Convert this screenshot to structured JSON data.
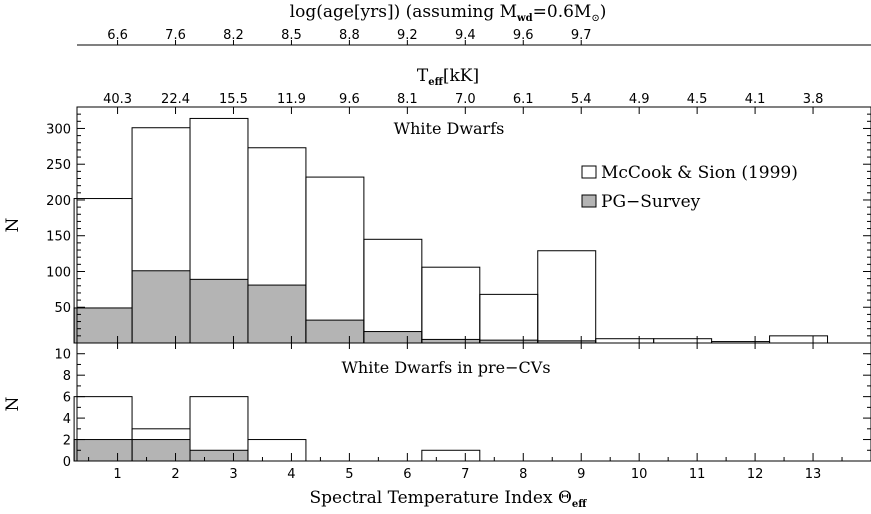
{
  "chart_data": [
    {
      "type": "bar",
      "panel": "upper",
      "title": "White Dwarfs",
      "ylabel": "N",
      "ylim": [
        0,
        330
      ],
      "yticks": [
        50,
        100,
        150,
        200,
        250,
        300
      ],
      "xlim": [
        0.3,
        14.0
      ],
      "bin_edges": [
        0.25,
        1.25,
        2.25,
        3.25,
        4.25,
        5.25,
        6.25,
        7.25,
        8.25,
        9.25,
        10.25,
        11.25,
        12.25,
        13.25
      ],
      "series": [
        {
          "name": "McCook & Sion (1999)",
          "style": "open",
          "values": [
            202,
            301,
            314,
            273,
            232,
            145,
            106,
            68,
            129,
            6,
            6,
            2,
            10
          ]
        },
        {
          "name": "PG−Survey",
          "style": "filled",
          "values": [
            49,
            101,
            89,
            81,
            32,
            16,
            5,
            4,
            3,
            0,
            0,
            0,
            0
          ]
        }
      ]
    },
    {
      "type": "bar",
      "panel": "lower",
      "title": "White Dwarfs in pre−CVs",
      "xlabel_main": "Spectral Temperature Index Θ",
      "xlabel_sub": "eff",
      "ylabel": "N",
      "ylim": [
        0,
        11
      ],
      "yticks": [
        0,
        2,
        4,
        6,
        8,
        10
      ],
      "xlim": [
        0.3,
        14.0
      ],
      "xticks": [
        1,
        2,
        3,
        4,
        5,
        6,
        7,
        8,
        9,
        10,
        11,
        12,
        13
      ],
      "bin_edges": [
        0.25,
        1.25,
        2.25,
        3.25,
        4.25,
        5.25,
        6.25,
        7.25,
        8.25,
        9.25,
        10.25,
        11.25,
        12.25,
        13.25
      ],
      "series": [
        {
          "name": "McCook & Sion (1999)",
          "style": "open",
          "values": [
            6,
            3,
            6,
            2,
            0,
            0,
            1,
            0,
            0,
            0,
            0,
            0,
            0
          ]
        },
        {
          "name": "PG−Survey",
          "style": "filled",
          "values": [
            2,
            2,
            1,
            0,
            0,
            0,
            0,
            0,
            0,
            0,
            0,
            0,
            0
          ]
        }
      ]
    }
  ],
  "teff_axis": {
    "label_main": "T",
    "label_sub": "eff",
    "label_tail": "[kK]",
    "ticks": [
      {
        "theta": 1,
        "label": "40.3"
      },
      {
        "theta": 2,
        "label": "22.4"
      },
      {
        "theta": 3,
        "label": "15.5"
      },
      {
        "theta": 4,
        "label": "11.9"
      },
      {
        "theta": 5,
        "label": "9.6"
      },
      {
        "theta": 6,
        "label": "8.1"
      },
      {
        "theta": 7,
        "label": "7.0"
      },
      {
        "theta": 8,
        "label": "6.1"
      },
      {
        "theta": 9,
        "label": "5.4"
      },
      {
        "theta": 10,
        "label": "4.9"
      },
      {
        "theta": 11,
        "label": "4.5"
      },
      {
        "theta": 12,
        "label": "4.1"
      },
      {
        "theta": 13,
        "label": "3.8"
      }
    ]
  },
  "age_axis": {
    "label_pre": "log(age[yrs]) (assuming M",
    "label_sub1": "wd",
    "label_mid": "=0.6M",
    "label_sub2": "⊙",
    "label_post": ")",
    "ticks": [
      {
        "theta": 1,
        "label": "6.6"
      },
      {
        "theta": 2,
        "label": "7.6"
      },
      {
        "theta": 3,
        "label": "8.2"
      },
      {
        "theta": 4,
        "label": "8.5"
      },
      {
        "theta": 5,
        "label": "8.8"
      },
      {
        "theta": 6,
        "label": "9.2"
      },
      {
        "theta": 7,
        "label": "9.4"
      },
      {
        "theta": 8,
        "label": "9.6"
      },
      {
        "theta": 9,
        "label": "9.7"
      }
    ]
  },
  "legend": {
    "position": "right",
    "items": [
      {
        "label": "McCook & Sion (1999)",
        "style": "open"
      },
      {
        "label": "PG−Survey",
        "style": "filled"
      }
    ]
  },
  "colors": {
    "fill": "#b4b4b4",
    "line": "#000000"
  }
}
